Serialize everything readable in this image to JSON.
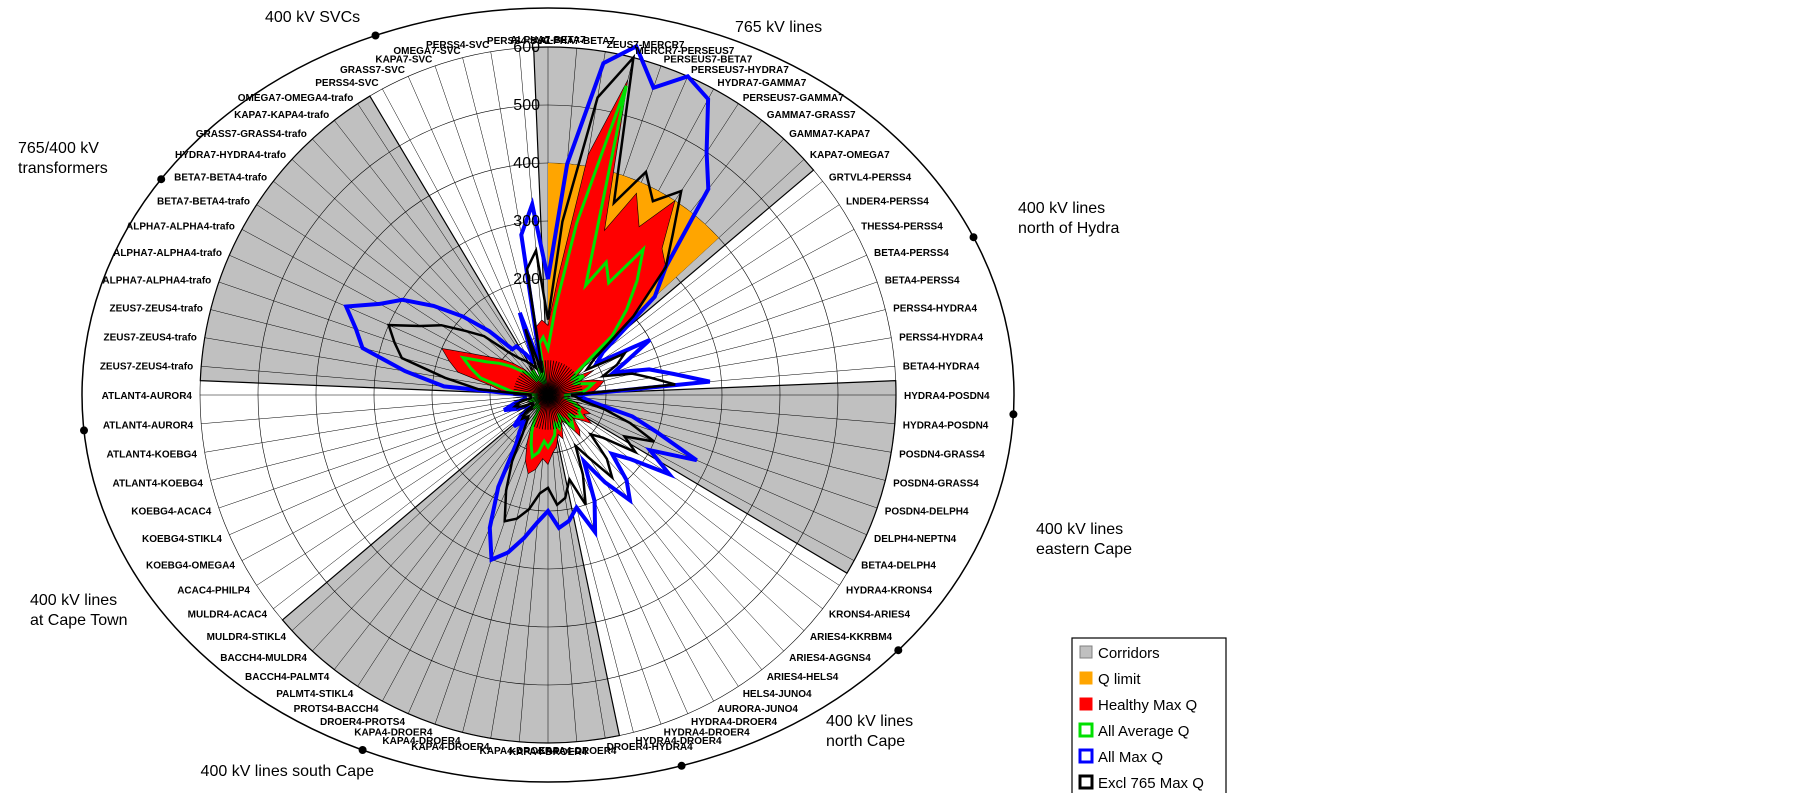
{
  "chart_data": {
    "type": "radar",
    "ylim": [
      0,
      600
    ],
    "rings": [
      100,
      200,
      300,
      400,
      500,
      600
    ],
    "tick_labels": [
      "200",
      "300",
      "400",
      "500",
      "600"
    ],
    "categories": [
      "ALPHA7-BETA7",
      "ALPHA7-BETA7",
      "ZEUS7-MERCR7",
      "MERCR7-PERSEUS7",
      "PERSEUS7-BETA7",
      "PERSEUS7-HYDRA7",
      "HYDRA7-GAMMA7",
      "PERSEUS7-GAMMA7",
      "GAMMA7-GRASS7",
      "GAMMA7-KAPA7",
      "KAPA7-OMEGA7",
      "GRTVL4-PERSS4",
      "LNDER4-PERSS4",
      "THESS4-PERSS4",
      "BETA4-PERSS4",
      "BETA4-PERSS4",
      "PERSS4-HYDRA4",
      "PERSS4-HYDRA4",
      "BETA4-HYDRA4",
      "HYDRA4-POSDN4",
      "HYDRA4-POSDN4",
      "POSDN4-GRASS4",
      "POSDN4-GRASS4",
      "POSDN4-DELPH4",
      "DELPH4-NEPTN4",
      "BETA4-DELPH4",
      "HYDRA4-KRONS4",
      "KRONS4-ARIES4",
      "ARIES4-KKRBM4",
      "ARIES4-AGGNS4",
      "ARIES4-HELS4",
      "HELS4-JUNO4",
      "AURORA-JUNO4",
      "HYDRA4-DROER4",
      "HYDRA4-DROER4",
      "HYDRA4-DROER4",
      "DROER4-HYDRA4",
      "KAPA4-DROER4",
      "KAPA4-DROER4",
      "KAPA4-DROER4",
      "KAPA4-DROER4",
      "KAPA4-DROER4",
      "KAPA4-DROER4",
      "DROER4-PROTS4",
      "PROTS4-BACCH4",
      "PALMT4-STIKL4",
      "BACCH4-PALMT4",
      "BACCH4-MULDR4",
      "MULDR4-STIKL4",
      "MULDR4-ACAC4",
      "ACAC4-PHILP4",
      "KOEBG4-OMEGA4",
      "KOEBG4-STIKL4",
      "KOEBG4-ACAC4",
      "ATLANT4-KOEBG4",
      "ATLANT4-KOEBG4",
      "ATLANT4-AUROR4",
      "ATLANT4-AUROR4",
      "ZEUS7-ZEUS4-trafo",
      "ZEUS7-ZEUS4-trafo",
      "ZEUS7-ZEUS4-trafo",
      "ALPHA7-ALPHA4-trafo",
      "ALPHA7-ALPHA4-trafo",
      "ALPHA7-ALPHA4-trafo",
      "BETA7-BETA4-trafo",
      "BETA7-BETA4-trafo",
      "HYDRA7-HYDRA4-trafo",
      "GRASS7-GRASS4-trafo",
      "KAPA7-KAPA4-trafo",
      "OMEGA7-OMEGA4-trafo",
      "PERSS4-SVC",
      "GRASS7-SVC",
      "KAPA7-SVC",
      "OMEGA7-SVC",
      "PERSS4-SVC",
      "PERSS4-SVC"
    ],
    "corridor_ranges": [
      [
        0,
        10
      ],
      [
        19,
        25
      ],
      [
        36,
        48
      ],
      [
        58,
        69
      ]
    ],
    "groups": [
      {
        "label": "765 kV lines",
        "line2": ""
      },
      {
        "label": "400 kV lines",
        "line2": "north of Hydra"
      },
      {
        "label": "400 kV lines",
        "line2": "eastern Cape"
      },
      {
        "label": "400 kV lines",
        "line2": "north Cape"
      },
      {
        "label": "400 kV lines south Cape",
        "line2": ""
      },
      {
        "label": "400 kV lines",
        "line2": "at Cape Town"
      },
      {
        "label": "765/400 kV",
        "line2": "transformers"
      },
      {
        "label": "400 kV SVCs",
        "line2": ""
      }
    ],
    "series": [
      {
        "name": "Q limit",
        "values": [
          400,
          400,
          400,
          400,
          400,
          400,
          400,
          400,
          400,
          400,
          400,
          0,
          0,
          0,
          0,
          0,
          0,
          0,
          0,
          0,
          0,
          0,
          0,
          0,
          0,
          0,
          0,
          0,
          0,
          0,
          0,
          0,
          0,
          0,
          0,
          0,
          0,
          0,
          0,
          0,
          0,
          0,
          0,
          0,
          0,
          0,
          0,
          0,
          0,
          0,
          0,
          0,
          0,
          0,
          0,
          0,
          0,
          0,
          0,
          0,
          0,
          0,
          0,
          0,
          0,
          0,
          0,
          0,
          0,
          0,
          0,
          0,
          0,
          0,
          0,
          0
        ]
      },
      {
        "name": "Healthy Max Q",
        "values": [
          120,
          200,
          420,
          560,
          300,
          380,
          330,
          400,
          320,
          300,
          200,
          80,
          60,
          90,
          60,
          80,
          100,
          90,
          80,
          30,
          40,
          30,
          50,
          60,
          80,
          70,
          90,
          70,
          60,
          80,
          90,
          60,
          50,
          60,
          80,
          70,
          90,
          100,
          120,
          110,
          130,
          140,
          120,
          90,
          60,
          40,
          30,
          30,
          40,
          30,
          20,
          20,
          30,
          40,
          30,
          20,
          20,
          20,
          80,
          100,
          160,
          180,
          200,
          150,
          120,
          100,
          80,
          60,
          40,
          60,
          40,
          30,
          60,
          20,
          120,
          130
        ]
      },
      {
        "name": "All Average Q",
        "values": [
          80,
          150,
          300,
          550,
          200,
          250,
          220,
          300,
          250,
          200,
          150,
          60,
          50,
          70,
          50,
          60,
          80,
          70,
          60,
          30,
          30,
          30,
          40,
          50,
          60,
          60,
          70,
          60,
          50,
          60,
          70,
          50,
          40,
          50,
          60,
          50,
          70,
          80,
          90,
          80,
          100,
          110,
          90,
          70,
          50,
          30,
          25,
          25,
          30,
          25,
          20,
          20,
          25,
          30,
          25,
          20,
          20,
          20,
          60,
          80,
          120,
          140,
          160,
          120,
          100,
          80,
          60,
          50,
          30,
          50,
          30,
          25,
          50,
          20,
          90,
          100
        ]
      },
      {
        "name": "All Max Q",
        "values": [
          200,
          400,
          580,
          620,
          560,
          600,
          580,
          500,
          450,
          300,
          250,
          120,
          100,
          200,
          150,
          120,
          180,
          220,
          280,
          50,
          60,
          80,
          150,
          200,
          280,
          200,
          250,
          180,
          150,
          200,
          230,
          180,
          130,
          200,
          250,
          200,
          220,
          230,
          200,
          220,
          250,
          280,
          300,
          250,
          180,
          100,
          80,
          60,
          80,
          60,
          40,
          40,
          60,
          80,
          60,
          40,
          40,
          40,
          180,
          250,
          330,
          350,
          380,
          330,
          300,
          250,
          200,
          150,
          100,
          100,
          80,
          60,
          150,
          50,
          280,
          330
        ]
      },
      {
        "name": "Excl 765 Max Q",
        "values": [
          130,
          300,
          520,
          600,
          350,
          420,
          380,
          420,
          350,
          300,
          200,
          100,
          80,
          150,
          130,
          100,
          150,
          180,
          220,
          40,
          50,
          60,
          100,
          150,
          200,
          150,
          180,
          120,
          100,
          150,
          180,
          130,
          100,
          150,
          200,
          150,
          180,
          190,
          160,
          170,
          200,
          220,
          230,
          180,
          130,
          80,
          60,
          50,
          60,
          50,
          30,
          30,
          50,
          60,
          50,
          30,
          30,
          30,
          120,
          180,
          260,
          280,
          300,
          250,
          220,
          180,
          150,
          100,
          80,
          70,
          60,
          50,
          120,
          40,
          220,
          250
        ]
      }
    ],
    "legend": [
      "Corridors",
      "Q limit",
      "Healthy Max Q",
      "All Average Q",
      "All Max Q",
      "Excl 765 Max Q"
    ],
    "legend_position": "bottom-right",
    "colors": {
      "corridor": "#c0c0c0",
      "q_limit": "#ffa500",
      "healthy": "#ff0000",
      "average": "#00e000",
      "allmax": "#0000ff",
      "excl": "#000000"
    }
  }
}
